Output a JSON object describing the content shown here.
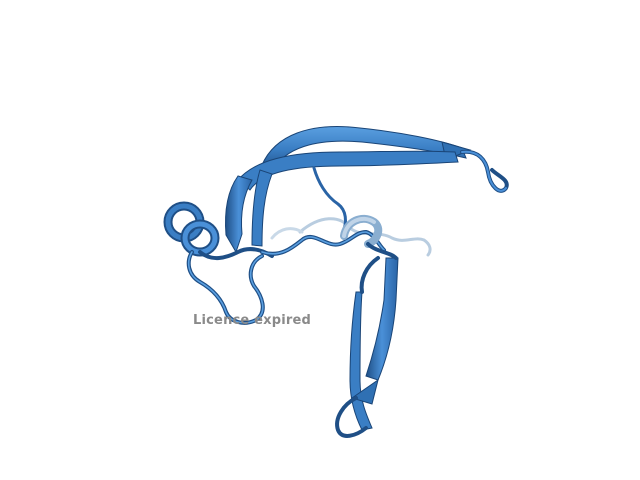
{
  "viewer": {
    "watermark_text": "Licence expired"
  },
  "colors": {
    "background": "#ffffff",
    "ribbon_main": "#3a7ec4",
    "ribbon_light": "#5a9fe0",
    "ribbon_dark": "#1f4f86",
    "loop_faded": "#b9cde0",
    "watermark": "#8a8a8a"
  }
}
